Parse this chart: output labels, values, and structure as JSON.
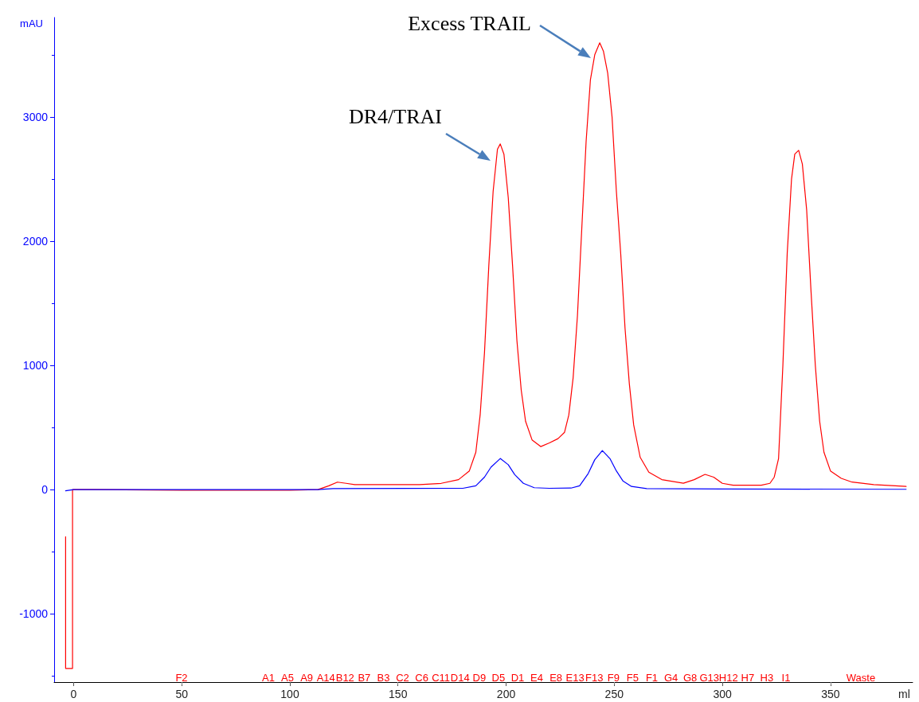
{
  "chart_data": {
    "type": "line",
    "ylabel": "mAU",
    "xlabel": "ml",
    "xlim": [
      -9,
      388
    ],
    "xticks": [
      0,
      50,
      100,
      150,
      200,
      250,
      300,
      350
    ],
    "ylim": [
      -1550,
      3800
    ],
    "yticks": [
      -1000,
      0,
      1000,
      2000,
      3000
    ],
    "grid": false,
    "marker": "none",
    "line_style": "solid",
    "series": [
      {
        "color": "#ff0000",
        "x": [
          -3.7,
          -3.7,
          -0.5,
          -0.5,
          10,
          50,
          100,
          113,
          118,
          122,
          126,
          130,
          160,
          170,
          178,
          183,
          186,
          188,
          190,
          192,
          194,
          196,
          197.3,
          199,
          201,
          203,
          205,
          207,
          209,
          212,
          216,
          220,
          224,
          227,
          229,
          231,
          233,
          235,
          237,
          239,
          241,
          243.3,
          245,
          247,
          249,
          251,
          253,
          255,
          257,
          259,
          262,
          266,
          272,
          282,
          287,
          292,
          296,
          300,
          305,
          318,
          322,
          324,
          326,
          328,
          330,
          332,
          333.5,
          335.3,
          337,
          339,
          341,
          343,
          345,
          347,
          350,
          355,
          360,
          370,
          385
        ],
        "values": [
          -380,
          -1440,
          -1440,
          0,
          0,
          -5,
          -5,
          0,
          30,
          60,
          50,
          40,
          40,
          50,
          80,
          150,
          300,
          600,
          1100,
          1800,
          2400,
          2740,
          2782,
          2700,
          2350,
          1800,
          1200,
          800,
          550,
          400,
          346,
          375,
          410,
          460,
          600,
          900,
          1400,
          2100,
          2800,
          3300,
          3500,
          3596,
          3530,
          3350,
          3000,
          2400,
          1900,
          1300,
          850,
          520,
          260,
          140,
          80,
          51,
          80,
          122,
          100,
          50,
          35,
          35,
          50,
          100,
          250,
          1000,
          1900,
          2500,
          2700,
          2731,
          2620,
          2250,
          1600,
          1000,
          550,
          300,
          150,
          90,
          60,
          40,
          25
        ]
      },
      {
        "color": "#0000ff",
        "x": [
          -3.7,
          0,
          113,
          120,
          180,
          186,
          190,
          193,
          197.3,
          201,
          204,
          208,
          213,
          220,
          230,
          234,
          238,
          241,
          244.5,
          248,
          251,
          254,
          258,
          265,
          300,
          385
        ],
        "values": [
          -10,
          0,
          0,
          8,
          10,
          30,
          100,
          180,
          250,
          200,
          120,
          50,
          15,
          10,
          12,
          30,
          130,
          240,
          314,
          250,
          150,
          70,
          25,
          8,
          5,
          2
        ]
      }
    ],
    "annotations": [
      "DR4/TRAI",
      "Excess TRAIL",
      "F2",
      "A1",
      "A5",
      "A9",
      "A14",
      "B12",
      "B7",
      "B3",
      "C2",
      "C6",
      "C11",
      "D14",
      "D9",
      "D5",
      "D1",
      "E4",
      "E8",
      "E13",
      "F13",
      "F9",
      "F5",
      "F1",
      "G4",
      "G8",
      "G13",
      "H12",
      "H7",
      "H3",
      "I1",
      "Waste"
    ]
  }
}
